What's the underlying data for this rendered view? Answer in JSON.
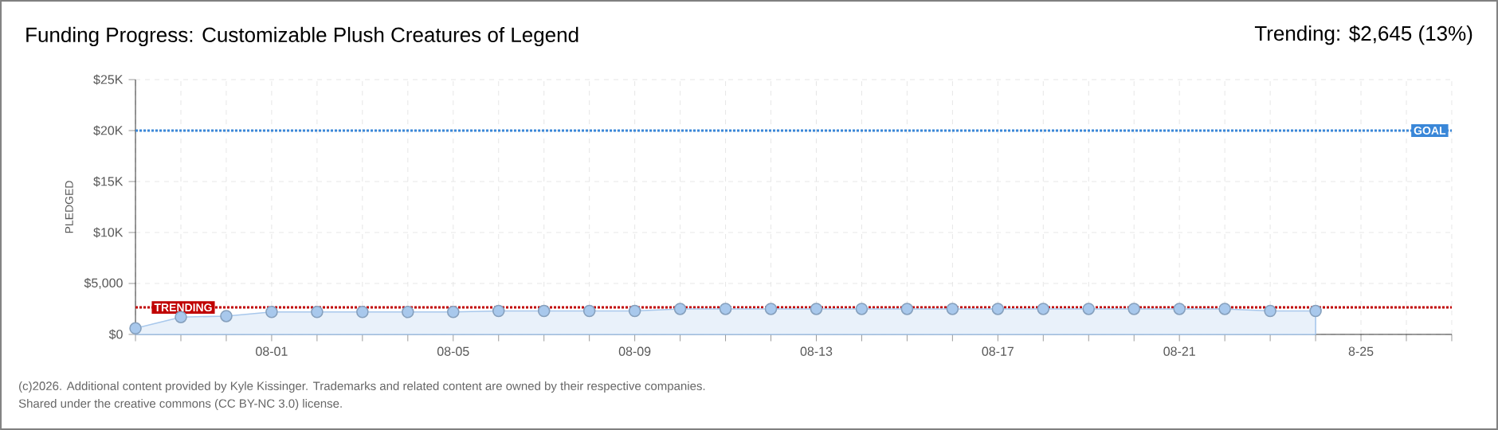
{
  "chart_data": {
    "type": "area",
    "title": "Funding Progress: Customizable Plush Creatures of Legend",
    "subtitle": "Trending: $2,645 (13%)",
    "ylabel": "PLEDGED",
    "x": [
      "2026-07-29",
      "2026-07-30",
      "2026-07-31",
      "2026-08-01",
      "2026-08-02",
      "2026-08-03",
      "2026-08-04",
      "2026-08-05",
      "2026-08-06",
      "2026-08-07",
      "2026-08-08",
      "2026-08-09",
      "2026-08-10",
      "2026-08-11",
      "2026-08-12",
      "2026-08-13",
      "2026-08-14",
      "2026-08-15",
      "2026-08-16",
      "2026-08-17",
      "2026-08-18",
      "2026-08-19",
      "2026-08-20",
      "2026-08-21",
      "2026-08-22",
      "2026-08-23",
      "2026-08-24"
    ],
    "series": [
      {
        "color": "#a8c8ec",
        "values": [
          600,
          1700,
          1800,
          2200,
          2200,
          2200,
          2200,
          2200,
          2300,
          2300,
          2300,
          2300,
          2500,
          2500,
          2500,
          2500,
          2500,
          2500,
          2500,
          2500,
          2500,
          2500,
          2500,
          2500,
          2500,
          2300,
          2300
        ]
      }
    ],
    "xlim": [
      "2026-07-29",
      "2026-08-27"
    ],
    "xticks": [
      {
        "value": "2026-07-29",
        "label": null
      },
      {
        "value": "2026-07-30",
        "label": null
      },
      {
        "value": "2026-07-31",
        "label": null
      },
      {
        "value": "2026-08-01",
        "label": "08-01"
      },
      {
        "value": "2026-08-02",
        "label": null
      },
      {
        "value": "2026-08-03",
        "label": null
      },
      {
        "value": "2026-08-04",
        "label": null
      },
      {
        "value": "2026-08-05",
        "label": "08-05"
      },
      {
        "value": "2026-08-06",
        "label": null
      },
      {
        "value": "2026-08-07",
        "label": null
      },
      {
        "value": "2026-08-08",
        "label": null
      },
      {
        "value": "2026-08-09",
        "label": "08-09"
      },
      {
        "value": "2026-08-10",
        "label": null
      },
      {
        "value": "2026-08-11",
        "label": null
      },
      {
        "value": "2026-08-12",
        "label": null
      },
      {
        "value": "2026-08-13",
        "label": "08-13"
      },
      {
        "value": "2026-08-14",
        "label": null
      },
      {
        "value": "2026-08-15",
        "label": null
      },
      {
        "value": "2026-08-16",
        "label": null
      },
      {
        "value": "2026-08-17",
        "label": "08-17"
      },
      {
        "value": "2026-08-18",
        "label": null
      },
      {
        "value": "2026-08-19",
        "label": null
      },
      {
        "value": "2026-08-20",
        "label": null
      },
      {
        "value": "2026-08-21",
        "label": "08-21"
      },
      {
        "value": "2026-08-22",
        "label": null
      },
      {
        "value": "2026-08-23",
        "label": null
      },
      {
        "value": "2026-08-24",
        "label": null
      },
      {
        "value": "2026-08-25",
        "label": "8-25"
      },
      {
        "value": "2026-08-26",
        "label": null
      },
      {
        "value": "2026-08-27",
        "label": null
      }
    ],
    "ylim": [
      0,
      25000
    ],
    "yticks": [
      {
        "value": 0,
        "label": "$0"
      },
      {
        "value": 5000,
        "label": "$5,000"
      },
      {
        "value": 10000,
        "label": "$10K"
      },
      {
        "value": 15000,
        "label": "$15K"
      },
      {
        "value": 20000,
        "label": "$20K"
      },
      {
        "value": 25000,
        "label": "$25K"
      }
    ],
    "ref_lines": [
      {
        "axis": "y",
        "value": 20000,
        "label": "GOAL",
        "color": "#3a87d8",
        "line_style": "dotted"
      },
      {
        "axis": "y",
        "value": 2645,
        "label": "TRENDING",
        "color": "#c00000",
        "line_style": "dotted"
      }
    ],
    "grid": true,
    "marker": "circle",
    "annotations": [
      "(c)2026. Additional content provided by Kyle Kissinger. Trademarks and related content are owned by their respective companies.",
      "Shared under the creative commons (CC BY-NC 3.0) license."
    ]
  }
}
